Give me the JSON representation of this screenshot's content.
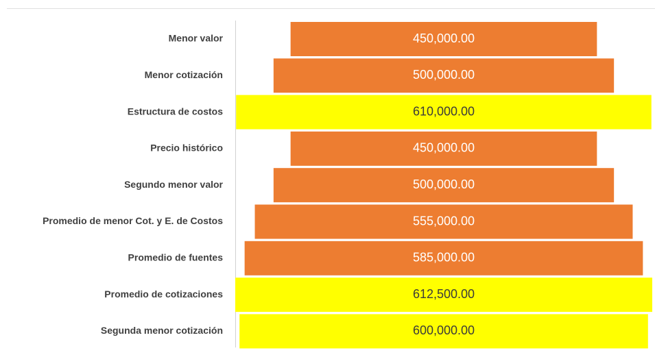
{
  "chart_data": {
    "type": "funnel",
    "categories": [
      "Menor valor",
      "Menor cotización",
      "Estructura de costos",
      "Precio histórico",
      "Segundo menor valor",
      "Promedio de menor Cot. y E. de Costos",
      "Promedio de fuentes",
      "Promedio de cotizaciones",
      "Segunda menor cotización"
    ],
    "values": [
      450000,
      500000,
      610000,
      450000,
      500000,
      555000,
      585000,
      612500,
      600000
    ],
    "value_labels": [
      "450,000.00",
      "500,000.00",
      "610,000.00",
      "450,000.00",
      "500,000.00",
      "555,000.00",
      "585,000.00",
      "612,500.00",
      "600,000.00"
    ],
    "colors": [
      "#ed7d31",
      "#ed7d31",
      "#ffff00",
      "#ed7d31",
      "#ed7d31",
      "#ed7d31",
      "#ed7d31",
      "#ffff00",
      "#ffff00"
    ],
    "label_colors": [
      "#ffffff",
      "#ffffff",
      "#3a3a3a",
      "#ffffff",
      "#ffffff",
      "#ffffff",
      "#ffffff",
      "#3a3a3a",
      "#3a3a3a"
    ]
  }
}
